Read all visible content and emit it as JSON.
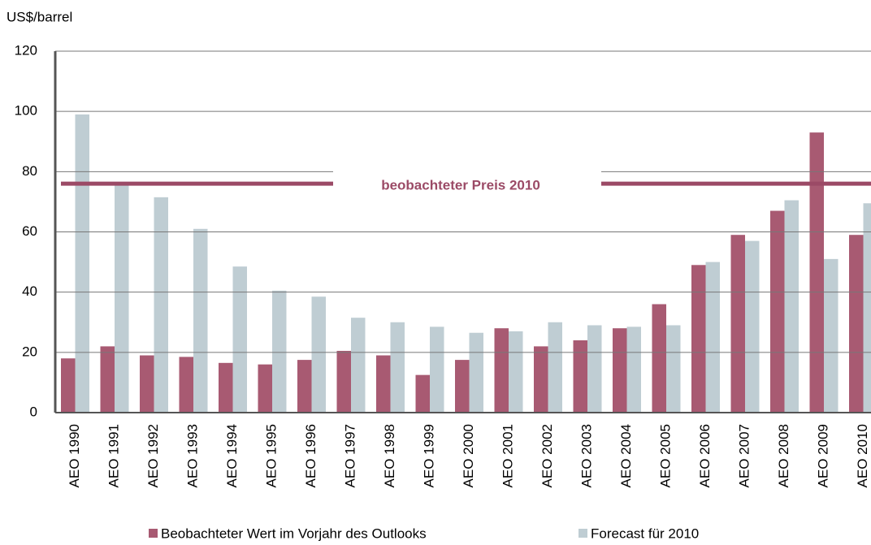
{
  "chart_data": {
    "type": "bar",
    "y_axis_label": "US$/barrel",
    "categories": [
      "AEO 1990",
      "AEO 1991",
      "AEO 1992",
      "AEO 1993",
      "AEO 1994",
      "AEO 1995",
      "AEO 1996",
      "AEO 1997",
      "AEO 1998",
      "AEO 1999",
      "AEO 2000",
      "AEO 2001",
      "AEO 2002",
      "AEO 2003",
      "AEO 2004",
      "AEO 2005",
      "AEO 2006",
      "AEO 2007",
      "AEO 2008",
      "AEO 2009",
      "AEO 2010"
    ],
    "series": [
      {
        "name": "Beobachteter Wert im Vorjahr des Outlooks",
        "color": "#a85a72",
        "values": [
          18,
          22,
          19,
          18.5,
          16.5,
          16,
          17.5,
          20.5,
          19,
          12.5,
          17.5,
          28,
          22,
          24,
          28,
          36,
          49,
          59,
          67,
          93,
          59
        ]
      },
      {
        "name": "Forecast für 2010",
        "color": "#bfcdd3",
        "values": [
          99,
          76,
          71.5,
          61,
          48.5,
          40.5,
          38.5,
          31.5,
          30,
          28.5,
          26.5,
          27,
          30,
          29,
          28.5,
          29,
          50,
          57,
          70.5,
          51,
          69.5
        ]
      }
    ],
    "annotations": [
      {
        "text": "beobachteter Preis 2010",
        "value": 76,
        "color": "#9b4a66"
      }
    ],
    "ylim": [
      0,
      120
    ],
    "yticks": [
      0,
      20,
      40,
      60,
      80,
      100,
      120
    ],
    "grid": true,
    "legend": "bottom"
  }
}
